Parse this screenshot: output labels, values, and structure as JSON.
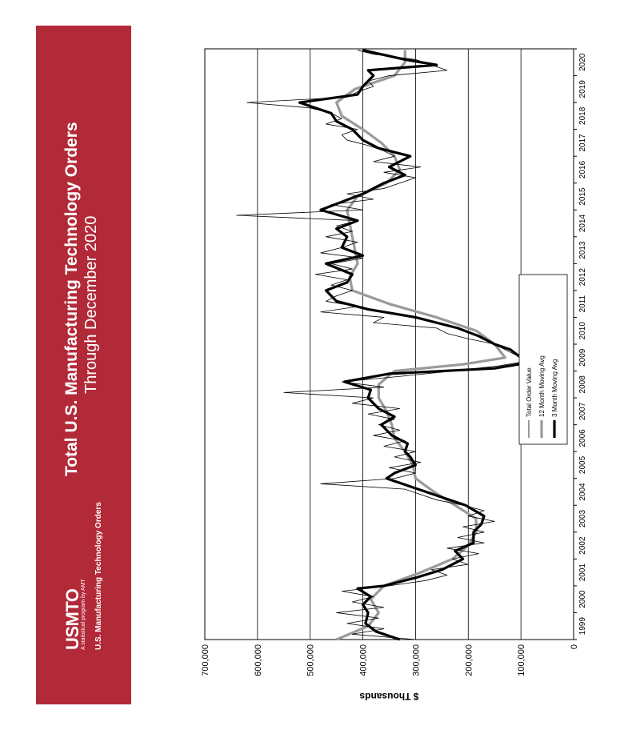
{
  "banner": {
    "title": "Total U.S. Manufacturing Technology Orders",
    "subtitle": "Through December 2020",
    "logo": "USMTO",
    "logo_tagline": "A statistical program by AMT",
    "program_name": "U.S. Manufacturing Technology Orders",
    "color": "#b22a38"
  },
  "chart_data": {
    "type": "line",
    "ylabel": "$ Thousands",
    "ylim": [
      0,
      700000
    ],
    "y_ticks": [
      "0",
      "100,000",
      "200,000",
      "300,000",
      "400,000",
      "500,000",
      "600,000",
      "700,000"
    ],
    "y_tick_values": [
      0,
      100000,
      200000,
      300000,
      400000,
      500000,
      600000,
      700000
    ],
    "xlim": [
      1999,
      2021
    ],
    "x_tick_labels": [
      "1999",
      "2000",
      "2001",
      "2002",
      "2003",
      "2004",
      "2005",
      "2006",
      "2007",
      "2008",
      "2009",
      "2010",
      "2011",
      "2012",
      "2013",
      "2014",
      "2015",
      "2016",
      "2017",
      "2018",
      "2019",
      "2020"
    ],
    "grid": true,
    "orientation": "rotated -90 degrees",
    "legend": [
      "Total Order Value",
      "12 Month Moving Avg",
      "3 Month Moving Avg"
    ],
    "series": [
      {
        "name": "12 Month Moving Avg",
        "color": "#999999",
        "x": [
          1999.0,
          1999.5,
          2000.0,
          2000.5,
          2001.0,
          2001.5,
          2002.0,
          2002.5,
          2003.0,
          2003.5,
          2004.0,
          2004.5,
          2005.0,
          2005.5,
          2006.0,
          2006.5,
          2007.0,
          2007.5,
          2008.0,
          2008.5,
          2009.0,
          2009.25,
          2009.5,
          2010.0,
          2010.5,
          2011.0,
          2011.5,
          2012.0,
          2012.5,
          2013.0,
          2013.5,
          2014.0,
          2014.5,
          2015.0,
          2015.5,
          2016.0,
          2016.5,
          2017.0,
          2017.5,
          2018.0,
          2018.5,
          2019.0,
          2019.5,
          2020.0,
          2020.5,
          2020.95
        ],
        "values": [
          450000,
          390000,
          370000,
          385000,
          360000,
          290000,
          230000,
          200000,
          185000,
          185000,
          225000,
          265000,
          300000,
          305000,
          320000,
          340000,
          345000,
          355000,
          370000,
          370000,
          340000,
          210000,
          130000,
          150000,
          185000,
          260000,
          350000,
          420000,
          425000,
          410000,
          415000,
          420000,
          425000,
          430000,
          410000,
          355000,
          330000,
          340000,
          365000,
          400000,
          440000,
          450000,
          415000,
          340000,
          320000,
          320000
        ]
      },
      {
        "name": "3 Month Moving Avg",
        "color": "#000000",
        "x": [
          1999.0,
          1999.3,
          1999.6,
          2000.0,
          2000.3,
          2000.6,
          2000.9,
          2001.0,
          2001.3,
          2001.6,
          2002.0,
          2002.3,
          2002.6,
          2003.0,
          2003.3,
          2003.6,
          2004.0,
          2004.3,
          2004.6,
          2005.0,
          2005.2,
          2005.5,
          2005.8,
          2006.0,
          2006.3,
          2006.6,
          2007.0,
          2007.3,
          2007.6,
          2008.0,
          2008.3,
          2008.6,
          2008.9,
          2009.0,
          2009.1,
          2009.3,
          2009.5,
          2009.8,
          2010.0,
          2010.3,
          2010.6,
          2011.0,
          2011.3,
          2011.6,
          2012.0,
          2012.3,
          2012.6,
          2013.0,
          2013.3,
          2013.6,
          2014.0,
          2014.3,
          2014.6,
          2015.0,
          2015.3,
          2015.6,
          2016.0,
          2016.3,
          2016.6,
          2017.0,
          2017.3,
          2017.6,
          2018.0,
          2018.3,
          2018.6,
          2019.0,
          2019.3,
          2019.6,
          2020.0,
          2020.2,
          2020.4,
          2020.6,
          2020.95
        ],
        "values": [
          330000,
          375000,
          395000,
          390000,
          400000,
          385000,
          410000,
          360000,
          300000,
          250000,
          210000,
          225000,
          190000,
          190000,
          175000,
          170000,
          205000,
          250000,
          295000,
          355000,
          340000,
          300000,
          310000,
          320000,
          315000,
          345000,
          365000,
          340000,
          370000,
          390000,
          385000,
          435000,
          350000,
          250000,
          150000,
          90000,
          100000,
          120000,
          150000,
          180000,
          220000,
          300000,
          390000,
          450000,
          470000,
          430000,
          420000,
          470000,
          400000,
          440000,
          430000,
          450000,
          410000,
          480000,
          440000,
          400000,
          360000,
          320000,
          350000,
          310000,
          370000,
          400000,
          420000,
          450000,
          460000,
          520000,
          410000,
          400000,
          380000,
          390000,
          260000,
          320000,
          400000
        ]
      },
      {
        "name": "Total Order Value",
        "color": "#000000",
        "x": [
          1999.0,
          1999.2,
          1999.4,
          1999.6,
          1999.8,
          2000.0,
          2000.2,
          2000.4,
          2000.6,
          2000.8,
          2001.0,
          2001.2,
          2001.4,
          2001.6,
          2001.8,
          2002.0,
          2002.2,
          2002.4,
          2002.6,
          2002.8,
          2003.0,
          2003.2,
          2003.4,
          2003.6,
          2003.8,
          2004.0,
          2004.2,
          2004.4,
          2004.6,
          2004.8,
          2005.0,
          2005.2,
          2005.4,
          2005.6,
          2005.8,
          2006.0,
          2006.2,
          2006.4,
          2006.6,
          2006.8,
          2007.0,
          2007.2,
          2007.4,
          2007.6,
          2007.8,
          2008.0,
          2008.2,
          2008.4,
          2008.6,
          2008.8,
          2009.0,
          2009.2,
          2009.4,
          2009.6,
          2009.8,
          2010.0,
          2010.2,
          2010.4,
          2010.6,
          2010.8,
          2011.0,
          2011.2,
          2011.4,
          2011.6,
          2011.8,
          2012.0,
          2012.2,
          2012.4,
          2012.6,
          2012.8,
          2013.0,
          2013.2,
          2013.4,
          2013.6,
          2013.8,
          2014.0,
          2014.2,
          2014.4,
          2014.6,
          2014.8,
          2015.0,
          2015.2,
          2015.4,
          2015.6,
          2015.8,
          2016.0,
          2016.2,
          2016.4,
          2016.6,
          2016.8,
          2017.0,
          2017.2,
          2017.4,
          2017.6,
          2017.8,
          2018.0,
          2018.2,
          2018.4,
          2018.6,
          2018.8,
          2019.0,
          2019.2,
          2019.4,
          2019.6,
          2019.8,
          2020.0,
          2020.2,
          2020.4,
          2020.6,
          2020.8,
          2020.95
        ],
        "values": [
          300000,
          420000,
          360000,
          430000,
          370000,
          450000,
          360000,
          420000,
          380000,
          440000,
          350000,
          280000,
          240000,
          270000,
          200000,
          230000,
          180000,
          240000,
          170000,
          220000,
          170000,
          210000,
          150000,
          200000,
          170000,
          210000,
          260000,
          290000,
          320000,
          480000,
          340000,
          300000,
          350000,
          290000,
          340000,
          300000,
          360000,
          320000,
          380000,
          330000,
          370000,
          340000,
          390000,
          330000,
          420000,
          380000,
          550000,
          360000,
          440000,
          330000,
          230000,
          140000,
          80000,
          110000,
          130000,
          150000,
          200000,
          240000,
          260000,
          380000,
          360000,
          480000,
          410000,
          470000,
          450000,
          420000,
          460000,
          430000,
          490000,
          420000,
          460000,
          400000,
          480000,
          440000,
          410000,
          470000,
          420000,
          450000,
          410000,
          640000,
          400000,
          460000,
          380000,
          430000,
          360000,
          330000,
          300000,
          360000,
          290000,
          380000,
          340000,
          360000,
          390000,
          430000,
          440000,
          410000,
          470000,
          440000,
          460000,
          500000,
          620000,
          430000,
          410000,
          380000,
          390000,
          350000,
          240000,
          270000,
          300000,
          380000,
          410000
        ]
      }
    ]
  }
}
